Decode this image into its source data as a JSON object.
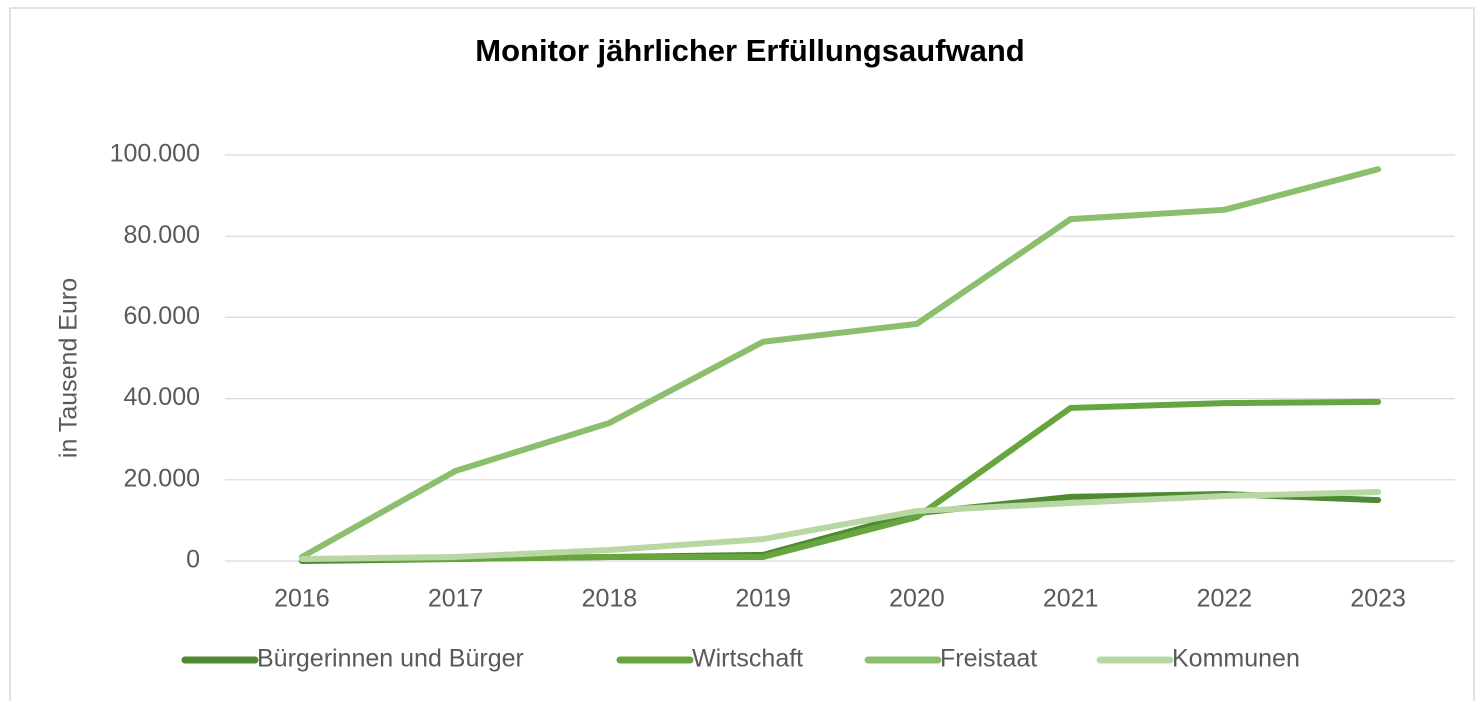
{
  "chart_data": {
    "type": "line",
    "title": "Monitor jährlicher Erfüllungsaufwand",
    "y_label": "in Tausend Euro",
    "categories": [
      "2016",
      "2017",
      "2018",
      "2019",
      "2020",
      "2021",
      "2022",
      "2023"
    ],
    "series": [
      {
        "name": "Bürgerinnen und Bürger",
        "color": "#4e8a32",
        "values": [
          0,
          500,
          1000,
          1500,
          11800,
          15800,
          16500,
          15000
        ]
      },
      {
        "name": "Wirtschaft",
        "color": "#67a53f",
        "values": [
          500,
          500,
          1000,
          1000,
          10800,
          37700,
          38900,
          39200
        ]
      },
      {
        "name": "Freistaat",
        "color": "#8bbf6e",
        "values": [
          1000,
          22200,
          34000,
          54000,
          58400,
          84200,
          86500,
          96500
        ]
      },
      {
        "name": "Kommunen",
        "color": "#b8d7a3",
        "values": [
          500,
          1000,
          2700,
          5400,
          12300,
          14300,
          16000,
          17000
        ]
      }
    ],
    "ylim": [
      0,
      100000
    ],
    "yticks": [
      0,
      {
        "value": 20000,
        "label": "20.000"
      },
      {
        "value": 40000,
        "label": "40.000"
      },
      {
        "value": 60000,
        "label": "60.000"
      },
      {
        "value": 80000,
        "label": "80.000"
      },
      {
        "value": 100000,
        "label": "100.000"
      }
    ],
    "grid": true,
    "legend": "bottom"
  }
}
